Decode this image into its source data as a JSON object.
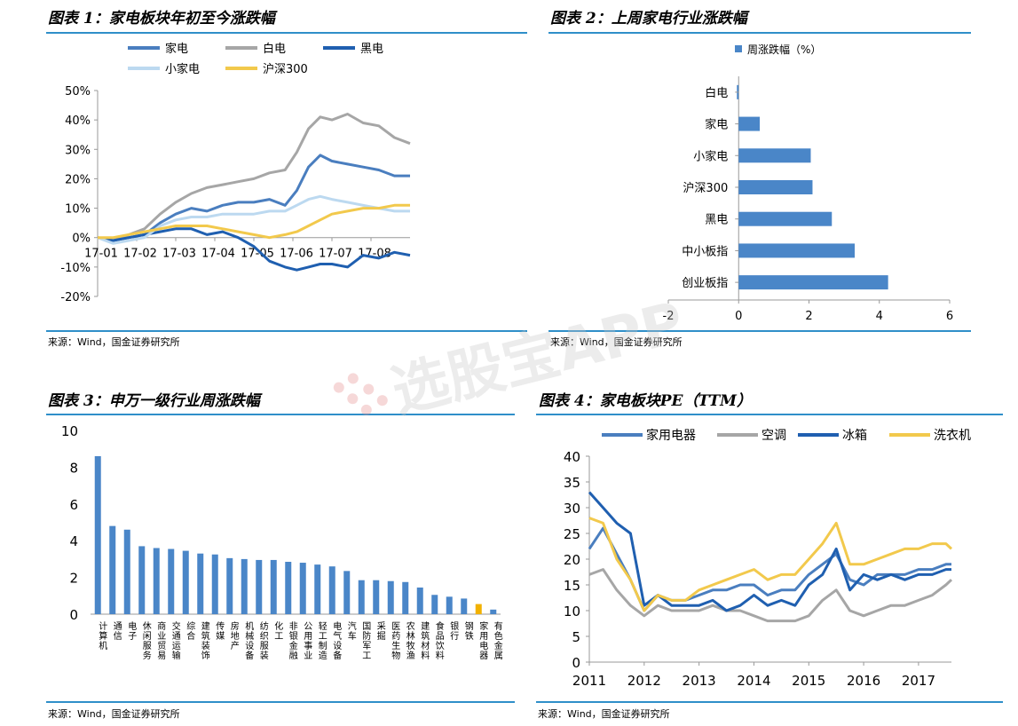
{
  "panels": {
    "p1": {
      "title": "图表 1：家电板块年初至今涨跌幅",
      "source": "来源：Wind，国金证券研究所"
    },
    "p2": {
      "title": "图表 2：上周家电行业涨跌幅",
      "source": "来源：Wind，国金证券研究所"
    },
    "p3": {
      "title": "图表 3：申万一级行业周涨跌幅",
      "source": "来源：Wind，国金证券研究所"
    },
    "p4": {
      "title": "图表 4：家电板块PE（TTM）",
      "source": "来源：Wind，国金证券研究所"
    }
  },
  "watermark": {
    "text": "选股宝APP"
  },
  "chart_data": [
    {
      "type": "line",
      "x": [
        "17-01",
        "17-02",
        "17-03",
        "17-04",
        "17-05",
        "17-06",
        "17-07",
        "17-08"
      ],
      "ylim": [
        -20,
        50
      ],
      "yticks": [
        -20,
        -10,
        0,
        10,
        20,
        30,
        40,
        50
      ],
      "ytick_labels": [
        "-20%",
        "-10%",
        "0%",
        "10%",
        "20%",
        "30%",
        "40%",
        "50%"
      ],
      "legend_position": "top",
      "series": [
        {
          "name": "家电",
          "color": "#4a7ebf",
          "values": [
            [
              0,
              0
            ],
            [
              0.4,
              -1
            ],
            [
              0.8,
              0
            ],
            [
              1.2,
              1
            ],
            [
              1.6,
              5
            ],
            [
              2,
              8
            ],
            [
              2.4,
              10
            ],
            [
              2.8,
              9
            ],
            [
              3.2,
              11
            ],
            [
              3.6,
              12
            ],
            [
              4,
              12
            ],
            [
              4.4,
              13
            ],
            [
              4.8,
              11
            ],
            [
              5.1,
              16
            ],
            [
              5.4,
              24
            ],
            [
              5.7,
              28
            ],
            [
              6,
              26
            ],
            [
              6.4,
              25
            ],
            [
              6.8,
              24
            ],
            [
              7.2,
              23
            ],
            [
              7.6,
              21
            ],
            [
              8,
              21
            ]
          ]
        },
        {
          "name": "白电",
          "color": "#a6a6a6",
          "values": [
            [
              0,
              0
            ],
            [
              0.4,
              -1
            ],
            [
              0.8,
              1
            ],
            [
              1.2,
              3
            ],
            [
              1.6,
              8
            ],
            [
              2,
              12
            ],
            [
              2.4,
              15
            ],
            [
              2.8,
              17
            ],
            [
              3.2,
              18
            ],
            [
              3.6,
              19
            ],
            [
              4,
              20
            ],
            [
              4.4,
              22
            ],
            [
              4.8,
              23
            ],
            [
              5.1,
              29
            ],
            [
              5.4,
              37
            ],
            [
              5.7,
              41
            ],
            [
              6,
              40
            ],
            [
              6.4,
              42
            ],
            [
              6.8,
              39
            ],
            [
              7.2,
              38
            ],
            [
              7.6,
              34
            ],
            [
              8,
              32
            ]
          ]
        },
        {
          "name": "黑电",
          "color": "#1f5fb0",
          "values": [
            [
              0,
              0
            ],
            [
              0.4,
              -1
            ],
            [
              0.8,
              0
            ],
            [
              1.2,
              1
            ],
            [
              1.6,
              2
            ],
            [
              2,
              3
            ],
            [
              2.4,
              3
            ],
            [
              2.8,
              1
            ],
            [
              3.2,
              2
            ],
            [
              3.6,
              0
            ],
            [
              4,
              -3
            ],
            [
              4.4,
              -8
            ],
            [
              4.8,
              -10
            ],
            [
              5.1,
              -11
            ],
            [
              5.4,
              -10
            ],
            [
              5.7,
              -9
            ],
            [
              6,
              -9
            ],
            [
              6.4,
              -10
            ],
            [
              6.8,
              -6
            ],
            [
              7.2,
              -7
            ],
            [
              7.6,
              -5
            ],
            [
              8,
              -6
            ]
          ]
        },
        {
          "name": "小家电",
          "color": "#bcd9f0",
          "values": [
            [
              0,
              0
            ],
            [
              0.4,
              -2
            ],
            [
              0.8,
              -1
            ],
            [
              1.2,
              0
            ],
            [
              1.6,
              4
            ],
            [
              2,
              6
            ],
            [
              2.4,
              7
            ],
            [
              2.8,
              7
            ],
            [
              3.2,
              8
            ],
            [
              3.6,
              8
            ],
            [
              4,
              8
            ],
            [
              4.4,
              9
            ],
            [
              4.8,
              9
            ],
            [
              5.1,
              11
            ],
            [
              5.4,
              13
            ],
            [
              5.7,
              14
            ],
            [
              6,
              13
            ],
            [
              6.4,
              12
            ],
            [
              6.8,
              11
            ],
            [
              7.2,
              10
            ],
            [
              7.6,
              9
            ],
            [
              8,
              9
            ]
          ]
        },
        {
          "name": "沪深300",
          "color": "#f2c94c",
          "values": [
            [
              0,
              0
            ],
            [
              0.4,
              0
            ],
            [
              0.8,
              1
            ],
            [
              1.2,
              2
            ],
            [
              1.6,
              3
            ],
            [
              2,
              4
            ],
            [
              2.4,
              4
            ],
            [
              2.8,
              4
            ],
            [
              3.2,
              3
            ],
            [
              3.6,
              2
            ],
            [
              4,
              1
            ],
            [
              4.4,
              0
            ],
            [
              4.8,
              1
            ],
            [
              5.1,
              2
            ],
            [
              5.4,
              4
            ],
            [
              5.7,
              6
            ],
            [
              6,
              8
            ],
            [
              6.4,
              9
            ],
            [
              6.8,
              10
            ],
            [
              7.2,
              10
            ],
            [
              7.6,
              11
            ],
            [
              8,
              11
            ]
          ]
        }
      ]
    },
    {
      "type": "bar",
      "orientation": "horizontal",
      "legend": "周涨跌幅（%）",
      "categories": [
        "白电",
        "家电",
        "小家电",
        "沪深300",
        "黑电",
        "中小板指",
        "创业板指"
      ],
      "values": [
        -0.05,
        0.6,
        2.05,
        2.1,
        2.65,
        3.3,
        4.25
      ],
      "xlim": [
        -2,
        6
      ],
      "xticks": [
        -2,
        0,
        2,
        4,
        6
      ],
      "color": "#4a86c8"
    },
    {
      "type": "bar",
      "categories": [
        "计算机",
        "通信",
        "电子",
        "休闲服务",
        "商业贸易",
        "交通运输",
        "综合",
        "建筑装饰",
        "传媒",
        "房地产",
        "机械设备",
        "纺织服装",
        "化工",
        "非银金融",
        "公用事业",
        "轻工制造",
        "电气设备",
        "汽车",
        "国防军工",
        "采掘",
        "医药生物",
        "农林牧渔",
        "建筑材料",
        "食品饮料",
        "银行",
        "钢铁",
        "家用电器",
        "有色金属"
      ],
      "values": [
        8.6,
        4.8,
        4.6,
        3.7,
        3.6,
        3.55,
        3.45,
        3.3,
        3.25,
        3.05,
        3.0,
        2.95,
        2.95,
        2.85,
        2.8,
        2.7,
        2.6,
        2.35,
        1.85,
        1.85,
        1.8,
        1.75,
        1.45,
        1.05,
        0.95,
        0.85,
        0.55,
        0.25
      ],
      "highlight": "家用电器",
      "ylim": [
        0,
        10
      ],
      "yticks": [
        0,
        2,
        4,
        6,
        8,
        10
      ],
      "color": "#4a86c8",
      "highlight_color": "#f2b100"
    },
    {
      "type": "line",
      "x": [
        "2011",
        "2012",
        "2013",
        "2014",
        "2015",
        "2016",
        "2017"
      ],
      "ylim": [
        0,
        40
      ],
      "yticks": [
        0,
        5,
        10,
        15,
        20,
        25,
        30,
        35,
        40
      ],
      "legend_position": "top",
      "series": [
        {
          "name": "家用电器",
          "color": "#4a7ebf",
          "values": [
            [
              2011,
              22
            ],
            [
              2011.25,
              26
            ],
            [
              2011.5,
              21
            ],
            [
              2011.75,
              16
            ],
            [
              2012,
              10
            ],
            [
              2012.25,
              13
            ],
            [
              2012.5,
              12
            ],
            [
              2012.75,
              12
            ],
            [
              2013,
              13
            ],
            [
              2013.25,
              14
            ],
            [
              2013.5,
              14
            ],
            [
              2013.75,
              15
            ],
            [
              2014,
              15
            ],
            [
              2014.25,
              13
            ],
            [
              2014.5,
              14
            ],
            [
              2014.75,
              14
            ],
            [
              2015,
              17
            ],
            [
              2015.25,
              19
            ],
            [
              2015.5,
              21
            ],
            [
              2015.75,
              16
            ],
            [
              2016,
              15
            ],
            [
              2016.25,
              17
            ],
            [
              2016.5,
              17
            ],
            [
              2016.75,
              17
            ],
            [
              2017,
              18
            ],
            [
              2017.25,
              18
            ],
            [
              2017.5,
              19
            ],
            [
              2017.6,
              19
            ]
          ]
        },
        {
          "name": "空调",
          "color": "#a6a6a6",
          "values": [
            [
              2011,
              17
            ],
            [
              2011.25,
              18
            ],
            [
              2011.5,
              14
            ],
            [
              2011.75,
              11
            ],
            [
              2012,
              9
            ],
            [
              2012.25,
              11
            ],
            [
              2012.5,
              10
            ],
            [
              2012.75,
              10
            ],
            [
              2013,
              10
            ],
            [
              2013.25,
              11
            ],
            [
              2013.5,
              10
            ],
            [
              2013.75,
              10
            ],
            [
              2014,
              9
            ],
            [
              2014.25,
              8
            ],
            [
              2014.5,
              8
            ],
            [
              2014.75,
              8
            ],
            [
              2015,
              9
            ],
            [
              2015.25,
              12
            ],
            [
              2015.5,
              14
            ],
            [
              2015.75,
              10
            ],
            [
              2016,
              9
            ],
            [
              2016.25,
              10
            ],
            [
              2016.5,
              11
            ],
            [
              2016.75,
              11
            ],
            [
              2017,
              12
            ],
            [
              2017.25,
              13
            ],
            [
              2017.5,
              15
            ],
            [
              2017.6,
              16
            ]
          ]
        },
        {
          "name": "冰箱",
          "color": "#1f5fb0",
          "values": [
            [
              2011,
              33
            ],
            [
              2011.25,
              30
            ],
            [
              2011.5,
              27
            ],
            [
              2011.75,
              25
            ],
            [
              2012,
              11
            ],
            [
              2012.25,
              13
            ],
            [
              2012.5,
              11
            ],
            [
              2012.75,
              11
            ],
            [
              2013,
              11
            ],
            [
              2013.25,
              12
            ],
            [
              2013.5,
              10
            ],
            [
              2013.75,
              11
            ],
            [
              2014,
              13
            ],
            [
              2014.25,
              11
            ],
            [
              2014.5,
              12
            ],
            [
              2014.75,
              11
            ],
            [
              2015,
              15
            ],
            [
              2015.25,
              17
            ],
            [
              2015.5,
              22
            ],
            [
              2015.75,
              14
            ],
            [
              2016,
              17
            ],
            [
              2016.25,
              16
            ],
            [
              2016.5,
              17
            ],
            [
              2016.75,
              16
            ],
            [
              2017,
              17
            ],
            [
              2017.25,
              17
            ],
            [
              2017.5,
              18
            ],
            [
              2017.6,
              18
            ]
          ]
        },
        {
          "name": "洗衣机",
          "color": "#f2c94c",
          "values": [
            [
              2011,
              28
            ],
            [
              2011.25,
              27
            ],
            [
              2011.5,
              20
            ],
            [
              2011.75,
              16
            ],
            [
              2012,
              10
            ],
            [
              2012.25,
              13
            ],
            [
              2012.5,
              12
            ],
            [
              2012.75,
              12
            ],
            [
              2013,
              14
            ],
            [
              2013.25,
              15
            ],
            [
              2013.5,
              16
            ],
            [
              2013.75,
              17
            ],
            [
              2014,
              18
            ],
            [
              2014.25,
              16
            ],
            [
              2014.5,
              17
            ],
            [
              2014.75,
              17
            ],
            [
              2015,
              20
            ],
            [
              2015.25,
              23
            ],
            [
              2015.5,
              27
            ],
            [
              2015.75,
              19
            ],
            [
              2016,
              19
            ],
            [
              2016.25,
              20
            ],
            [
              2016.5,
              21
            ],
            [
              2016.75,
              22
            ],
            [
              2017,
              22
            ],
            [
              2017.25,
              23
            ],
            [
              2017.5,
              23
            ],
            [
              2017.6,
              22
            ]
          ]
        }
      ]
    }
  ]
}
